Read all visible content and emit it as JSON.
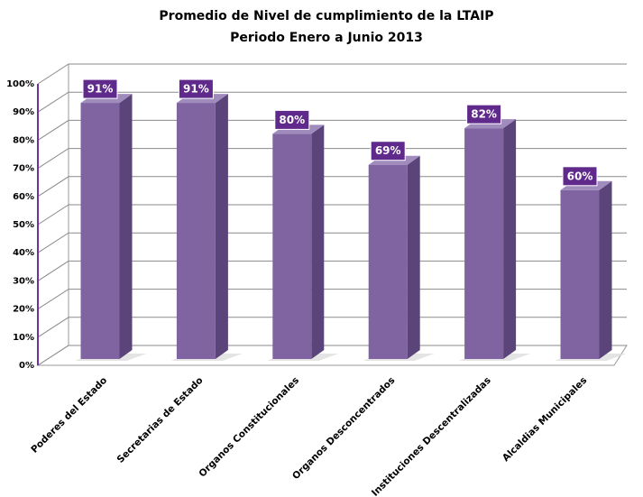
{
  "chart_data": {
    "type": "bar3d",
    "title": "Promedio de Nivel de cumplimiento de la LTAIP",
    "subtitle": "Periodo Enero a Junio 2013",
    "categories": [
      "Poderes del Estado",
      "Secretarias de Estado",
      "Organos Constitucionales",
      "Organos Desconcentrados",
      "Instituciones Descentralizadas",
      "Alcaldias Municipales"
    ],
    "values": [
      91,
      91,
      80,
      69,
      82,
      60
    ],
    "value_labels": [
      "91%",
      "91%",
      "80%",
      "69%",
      "82%",
      "60%"
    ],
    "color": "#8064a2",
    "ylim": [
      0,
      100
    ],
    "yticks": [
      {
        "value": 0,
        "label": "0%"
      },
      {
        "value": 10,
        "label": "10%"
      },
      {
        "value": 20,
        "label": "20%"
      },
      {
        "value": 30,
        "label": "30%"
      },
      {
        "value": 40,
        "label": "40%"
      },
      {
        "value": 50,
        "label": "50%"
      },
      {
        "value": 60,
        "label": "60%"
      },
      {
        "value": 70,
        "label": "70%"
      },
      {
        "value": 80,
        "label": "80%"
      },
      {
        "value": 90,
        "label": "90%"
      },
      {
        "value": 100,
        "label": "100%"
      }
    ],
    "grid": true
  }
}
